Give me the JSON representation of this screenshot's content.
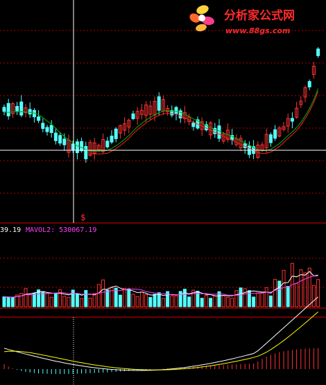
{
  "logo": {
    "title": "分析家公式网",
    "url": "www.88gs.com"
  },
  "volume_readout": {
    "left_value": "39.19",
    "mavol2_label": "MAVOL2: 530067.19"
  },
  "signal_marker": "$",
  "colors": {
    "up": "#ff3232",
    "down": "#54ffff",
    "ma_green": "#00b000",
    "ma_red": "#ff2020",
    "mavol1": "#ffffff",
    "mavol2": "#ff40ff",
    "macd_fast": "#ffffff",
    "macd_slow": "#ffff00",
    "grid": "#ff0000",
    "crosshair": "#ffffff",
    "logo_accent": "#ff2a2a"
  },
  "icons": {
    "logo": "flower-logo-icon"
  }
}
